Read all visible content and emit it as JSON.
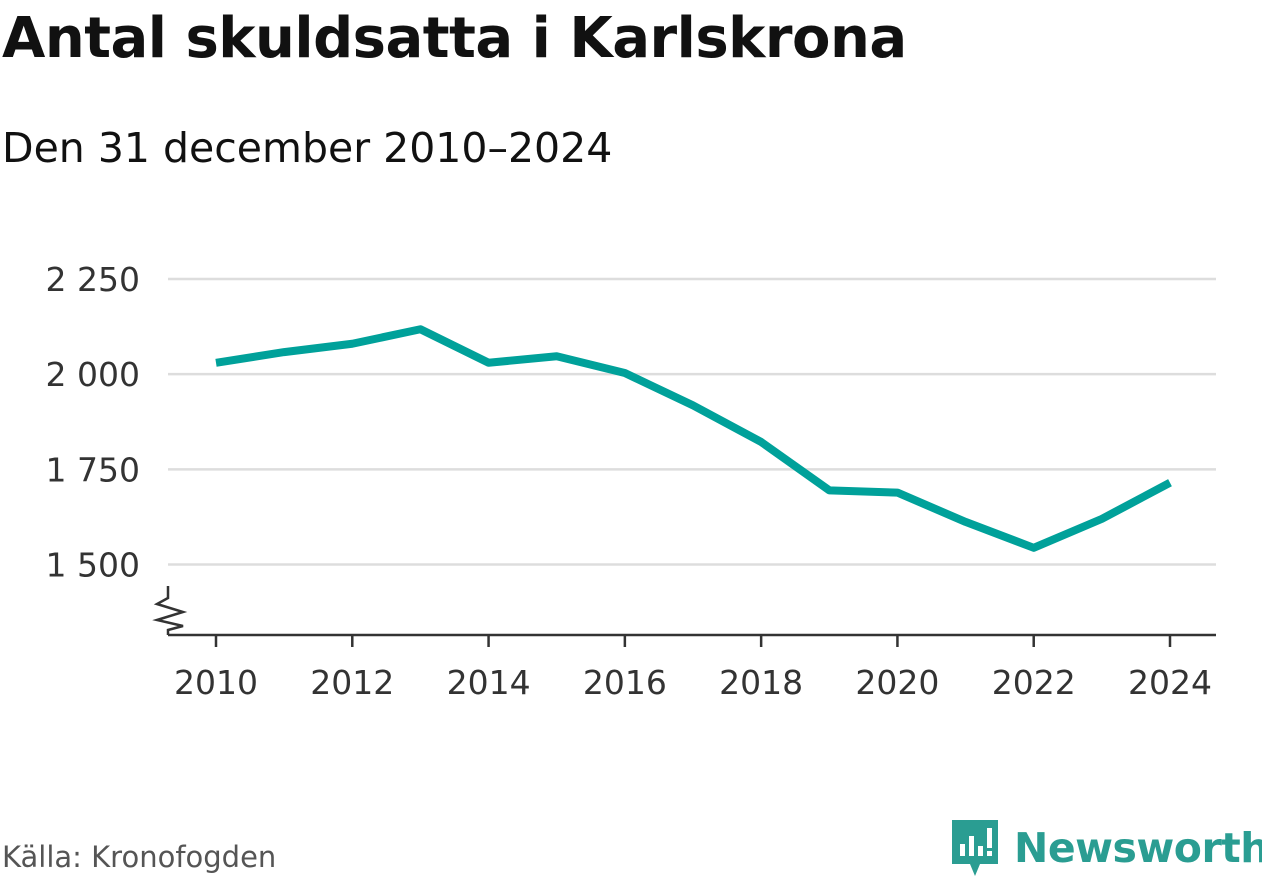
{
  "header": {
    "title": "Antal skuldsatta i Karlskrona",
    "subtitle": "Den 31 december 2010–2024"
  },
  "footer": {
    "source": "Källa: Kronofogden",
    "brand": "Newsworthy"
  },
  "colors": {
    "line": "#00a19a",
    "grid": "#dddddd",
    "axis": "#333333",
    "brand": "#2a9d92"
  },
  "chart_data": {
    "type": "line",
    "title": "Antal skuldsatta i Karlskrona",
    "subtitle": "Den 31 december 2010–2024",
    "xlabel": "",
    "ylabel": "",
    "x": [
      2010,
      2011,
      2012,
      2013,
      2014,
      2015,
      2016,
      2017,
      2018,
      2019,
      2020,
      2021,
      2022,
      2023,
      2024
    ],
    "series": [
      {
        "name": "Antal skuldsatta",
        "values": [
          2030,
          2058,
          2080,
          2118,
          2030,
          2047,
          2003,
          1918,
          1822,
          1695,
          1689,
          1612,
          1544,
          1620,
          1715
        ]
      }
    ],
    "ylim": [
      1315,
      2250
    ],
    "yticks": [
      1500,
      1750,
      2000,
      2250
    ],
    "ytick_labels": [
      "1 500",
      "1 750",
      "2 000",
      "2 250"
    ],
    "xticks": [
      2010,
      2012,
      2014,
      2016,
      2018,
      2020,
      2022,
      2024
    ],
    "xtick_labels": [
      "2010",
      "2012",
      "2014",
      "2016",
      "2018",
      "2020",
      "2022",
      "2024"
    ],
    "grid": true,
    "axis_break": true
  }
}
